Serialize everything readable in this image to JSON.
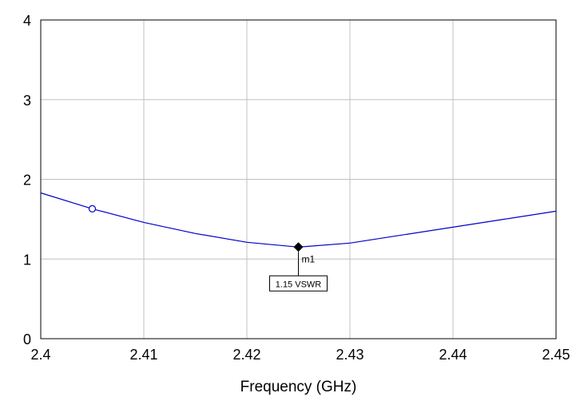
{
  "chart_data": {
    "type": "line",
    "xlabel": "Frequency (GHz)",
    "ylabel": "",
    "xlim": [
      2.4,
      2.45
    ],
    "ylim": [
      0,
      4
    ],
    "xticks": [
      "2.4",
      "2.41",
      "2.42",
      "2.43",
      "2.44",
      "2.45"
    ],
    "yticks": [
      "0",
      "1",
      "2",
      "3",
      "4"
    ],
    "grid": true,
    "colors": {
      "series": "#0000cc",
      "grid": "#c0c0c0",
      "frame": "#000000"
    },
    "series": [
      {
        "x": [
          2.4,
          2.405,
          2.41,
          2.415,
          2.42,
          2.425,
          2.43,
          2.435,
          2.44,
          2.445,
          2.45
        ],
        "values": [
          1.83,
          1.63,
          1.46,
          1.32,
          1.21,
          1.15,
          1.2,
          1.3,
          1.4,
          1.5,
          1.6
        ]
      }
    ],
    "open_point": {
      "x": 2.405,
      "y": 1.63
    },
    "marker": {
      "name": "m1",
      "x": 2.425,
      "y": 1.15,
      "readout": "1.15 VSWR"
    }
  }
}
